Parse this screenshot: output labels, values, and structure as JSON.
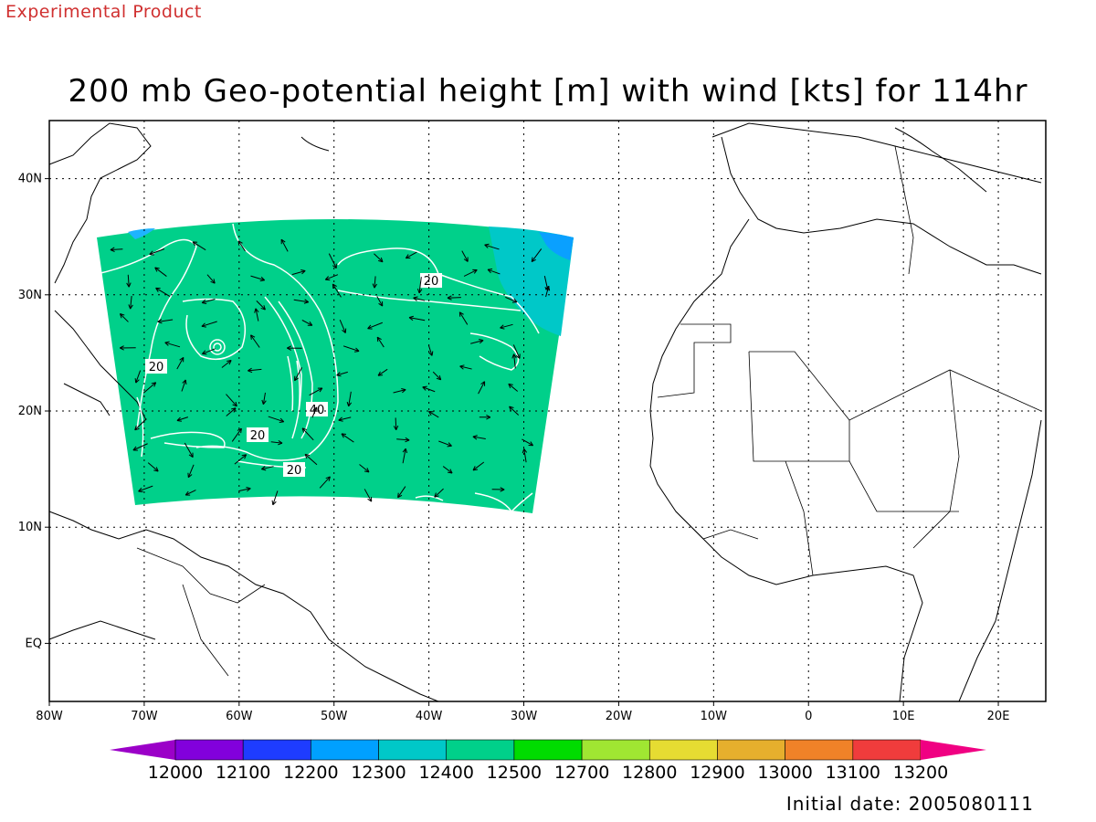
{
  "header": {
    "experimental": "Experimental Product",
    "title": "200 mb Geo-potential height [m] with wind [kts] for 114hr"
  },
  "footer": {
    "initial_date": "Initial date: 2005080111"
  },
  "map": {
    "lon_range": [
      -80,
      25
    ],
    "lat_range": [
      -5,
      45
    ],
    "lon_ticks": [
      "80W",
      "70W",
      "60W",
      "50W",
      "40W",
      "30W",
      "20W",
      "10W",
      "0",
      "10E",
      "20E"
    ],
    "lat_ticks": [
      "EQ",
      "10N",
      "20N",
      "30N",
      "40N"
    ],
    "field_color": "#00d08a",
    "field_color_cyan": "#00c8c8",
    "field_color_blue": "#0aa0ff",
    "contour_labels": [
      "20",
      "20",
      "20",
      "20",
      "40"
    ]
  },
  "colorbar": {
    "colors": [
      "#9b00c8",
      "#8200dc",
      "#1e3cff",
      "#00a0ff",
      "#00c8c8",
      "#00d08a",
      "#00dc00",
      "#a0e632",
      "#e6dc32",
      "#e6af2d",
      "#f08228",
      "#f03c3c",
      "#f00082"
    ],
    "labels": [
      "12000",
      "12100",
      "12200",
      "12300",
      "12400",
      "12500",
      "12700",
      "12800",
      "12900",
      "13000",
      "13100",
      "13200"
    ]
  }
}
